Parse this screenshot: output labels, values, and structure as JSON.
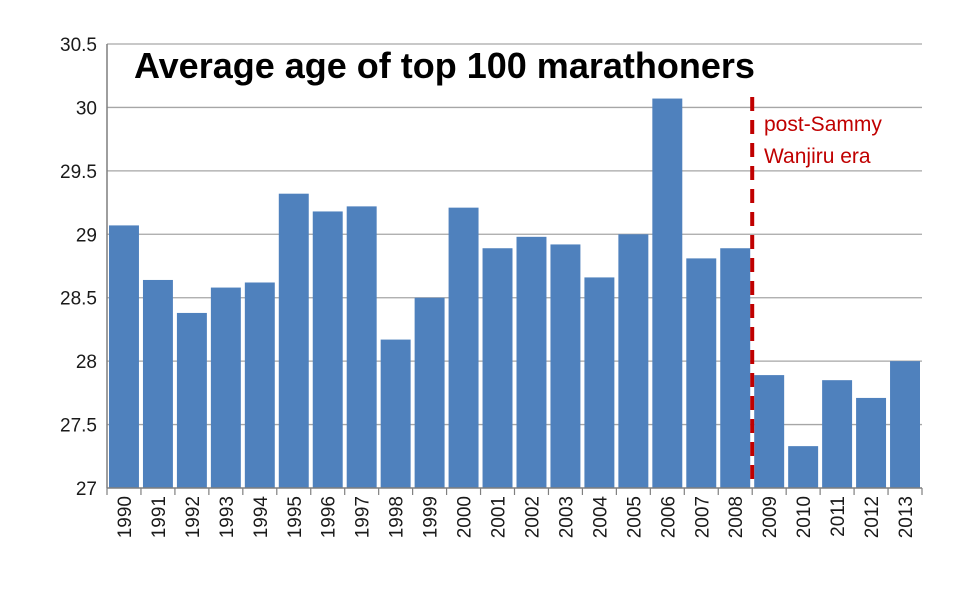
{
  "chart_data": {
    "type": "bar",
    "title": "Average age of top 100 marathoners",
    "xlabel": "",
    "ylabel": "",
    "ylim": [
      27,
      30.5
    ],
    "yticks": [
      "27",
      "27.5",
      "28",
      "28.5",
      "29",
      "29.5",
      "30",
      "30.5"
    ],
    "categories": [
      "1990",
      "1991",
      "1992",
      "1993",
      "1994",
      "1995",
      "1996",
      "1997",
      "1998",
      "1999",
      "2000",
      "2001",
      "2002",
      "2003",
      "2004",
      "2005",
      "2006",
      "2007",
      "2008",
      "2009",
      "2010",
      "2011",
      "2012",
      "2013"
    ],
    "values": [
      29.07,
      28.64,
      28.38,
      28.58,
      28.62,
      29.32,
      29.18,
      29.22,
      28.17,
      28.5,
      29.21,
      28.89,
      28.98,
      28.92,
      28.66,
      29.0,
      30.07,
      28.81,
      28.89,
      27.89,
      27.33,
      27.85,
      27.71,
      28.0
    ],
    "grid": true,
    "annotation": {
      "lines": [
        "post-Sammy",
        "Wanjiru era"
      ],
      "divider_between": [
        "2008",
        "2009"
      ]
    },
    "colors": {
      "bar": "#4f81bd",
      "grid": "#a6a6a6",
      "annotation": "#c00000"
    }
  }
}
